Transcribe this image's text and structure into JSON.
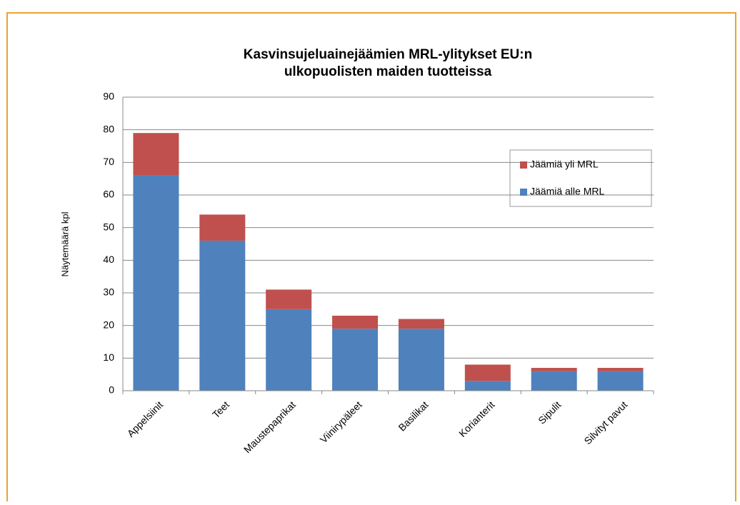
{
  "chart_data": {
    "type": "stacked_bar",
    "title": [
      "Kasvinsujeluainejäämien MRL-ylitykset EU:n",
      "ulkopuolisten maiden tuotteissa"
    ],
    "y_label": "Näytemäärä kpl",
    "categories": [
      "Appelsiinit",
      "Teet",
      "Maustepaprikat",
      "Viinirypäleet",
      "Basilikat",
      "Korianterit",
      "Sipulit",
      "Silvityt pavut"
    ],
    "series": [
      {
        "name": "Jäämiä alle MRL",
        "color": "#4f81bd",
        "values": [
          66,
          46,
          25,
          19,
          19,
          3,
          6,
          6
        ]
      },
      {
        "name": "Jäämiä yli MRL",
        "color": "#c0504d",
        "values": [
          13,
          8,
          6,
          4,
          3,
          5,
          1,
          1
        ]
      }
    ],
    "ylim": [
      0,
      90
    ],
    "yticks": [
      0,
      10,
      20,
      30,
      40,
      50,
      60,
      70,
      80,
      90
    ],
    "grid": true,
    "legend": "right"
  }
}
